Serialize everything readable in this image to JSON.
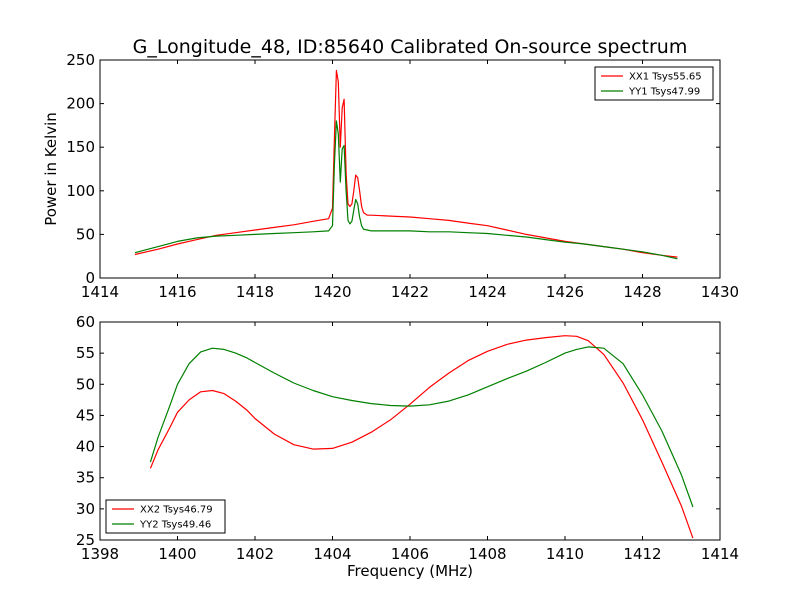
{
  "figure_title": "G_Longitude_48, ID:85640 Calibrated On-source spectrum",
  "chart_data": [
    {
      "type": "line",
      "title": "G_Longitude_48, ID:85640 Calibrated On-source spectrum",
      "xlabel": "",
      "ylabel": "Power in Kelvin",
      "xlim": [
        1414,
        1430
      ],
      "ylim": [
        0,
        250
      ],
      "xticks": [
        1414,
        1416,
        1418,
        1420,
        1422,
        1424,
        1426,
        1428,
        1430
      ],
      "yticks": [
        0,
        50,
        100,
        150,
        200,
        250
      ],
      "grid": false,
      "legend_position": "top-right",
      "series": [
        {
          "name": "XX1 Tsys55.65",
          "color": "#ff0000",
          "x": [
            1414.9,
            1415.5,
            1416,
            1416.5,
            1417,
            1417.5,
            1418,
            1418.5,
            1419,
            1419.5,
            1419.9,
            1420.0,
            1420.05,
            1420.1,
            1420.15,
            1420.2,
            1420.25,
            1420.3,
            1420.35,
            1420.4,
            1420.45,
            1420.5,
            1420.55,
            1420.6,
            1420.65,
            1420.7,
            1420.75,
            1420.8,
            1420.9,
            1421,
            1421.5,
            1422,
            1422.5,
            1423,
            1423.5,
            1424,
            1424.5,
            1425,
            1425.5,
            1426,
            1426.5,
            1427,
            1427.5,
            1428,
            1428.5,
            1428.9
          ],
          "values": [
            27,
            33,
            39,
            44,
            49,
            52,
            55,
            58,
            61,
            65,
            68,
            80,
            160,
            238,
            225,
            150,
            195,
            205,
            120,
            85,
            82,
            85,
            100,
            118,
            115,
            100,
            82,
            75,
            72,
            72,
            71,
            70,
            68,
            66,
            63,
            60,
            55,
            50,
            46,
            42,
            39,
            36,
            33,
            29,
            26,
            24
          ]
        },
        {
          "name": "YY1 Tsys47.99",
          "color": "#008000",
          "x": [
            1414.9,
            1415.5,
            1416,
            1416.5,
            1417,
            1417.5,
            1418,
            1418.5,
            1419,
            1419.5,
            1419.9,
            1420.0,
            1420.05,
            1420.1,
            1420.15,
            1420.2,
            1420.25,
            1420.3,
            1420.35,
            1420.4,
            1420.45,
            1420.5,
            1420.55,
            1420.6,
            1420.65,
            1420.7,
            1420.75,
            1420.8,
            1420.9,
            1421,
            1421.5,
            1422,
            1422.5,
            1423,
            1423.5,
            1424,
            1424.5,
            1425,
            1425.5,
            1426,
            1426.5,
            1427,
            1427.5,
            1428,
            1428.5,
            1428.9
          ],
          "values": [
            29,
            36,
            42,
            46,
            48,
            49,
            50,
            51,
            52,
            53,
            54,
            60,
            130,
            180,
            165,
            110,
            148,
            152,
            100,
            66,
            62,
            65,
            78,
            90,
            85,
            70,
            60,
            56,
            55,
            54,
            54,
            54,
            53,
            53,
            52,
            51,
            49,
            47,
            44,
            41,
            39,
            36,
            33,
            30,
            26,
            22
          ]
        }
      ]
    },
    {
      "type": "line",
      "title": "",
      "xlabel": "Frequency (MHz)",
      "ylabel": "",
      "xlim": [
        1398,
        1414
      ],
      "ylim": [
        25,
        60
      ],
      "xticks": [
        1398,
        1400,
        1402,
        1404,
        1406,
        1408,
        1410,
        1412,
        1414
      ],
      "yticks": [
        25,
        30,
        35,
        40,
        45,
        50,
        55,
        60
      ],
      "grid": false,
      "legend_position": "bottom-left",
      "series": [
        {
          "name": "XX2 Tsys46.79",
          "color": "#ff0000",
          "x": [
            1399.3,
            1399.5,
            1399.8,
            1400.0,
            1400.3,
            1400.6,
            1400.9,
            1401.2,
            1401.5,
            1401.8,
            1402.0,
            1402.5,
            1403.0,
            1403.5,
            1404.0,
            1404.5,
            1405.0,
            1405.5,
            1406.0,
            1406.5,
            1407.0,
            1407.5,
            1408.0,
            1408.5,
            1409.0,
            1409.5,
            1410.0,
            1410.3,
            1410.6,
            1411.0,
            1411.5,
            1412.0,
            1412.5,
            1413.0,
            1413.3
          ],
          "values": [
            36.5,
            39.5,
            43,
            45.5,
            47.5,
            48.8,
            49,
            48.5,
            47.3,
            45.8,
            44.5,
            42,
            40.3,
            39.6,
            39.7,
            40.7,
            42.3,
            44.3,
            46.8,
            49.5,
            51.8,
            53.8,
            55.3,
            56.4,
            57.1,
            57.5,
            57.8,
            57.7,
            57,
            54.8,
            50.2,
            44.3,
            37.5,
            30.5,
            25.3
          ]
        },
        {
          "name": "YY2 Tsys49.46",
          "color": "#008000",
          "x": [
            1399.3,
            1399.5,
            1399.8,
            1400.0,
            1400.3,
            1400.6,
            1400.9,
            1401.2,
            1401.5,
            1401.8,
            1402.0,
            1402.5,
            1403.0,
            1403.5,
            1404.0,
            1404.5,
            1405.0,
            1405.5,
            1406.0,
            1406.5,
            1407.0,
            1407.5,
            1408.0,
            1408.5,
            1409.0,
            1409.5,
            1410.0,
            1410.3,
            1410.6,
            1411.0,
            1411.5,
            1412.0,
            1412.5,
            1413.0,
            1413.3
          ],
          "values": [
            37.5,
            41.5,
            46.5,
            50,
            53.3,
            55.2,
            55.8,
            55.6,
            55,
            54.2,
            53.5,
            51.8,
            50.2,
            49,
            48,
            47.4,
            46.9,
            46.6,
            46.5,
            46.7,
            47.3,
            48.3,
            49.6,
            50.9,
            52.1,
            53.5,
            55,
            55.6,
            56,
            55.8,
            53.3,
            48.3,
            42.5,
            35.5,
            30.3
          ]
        }
      ]
    }
  ]
}
